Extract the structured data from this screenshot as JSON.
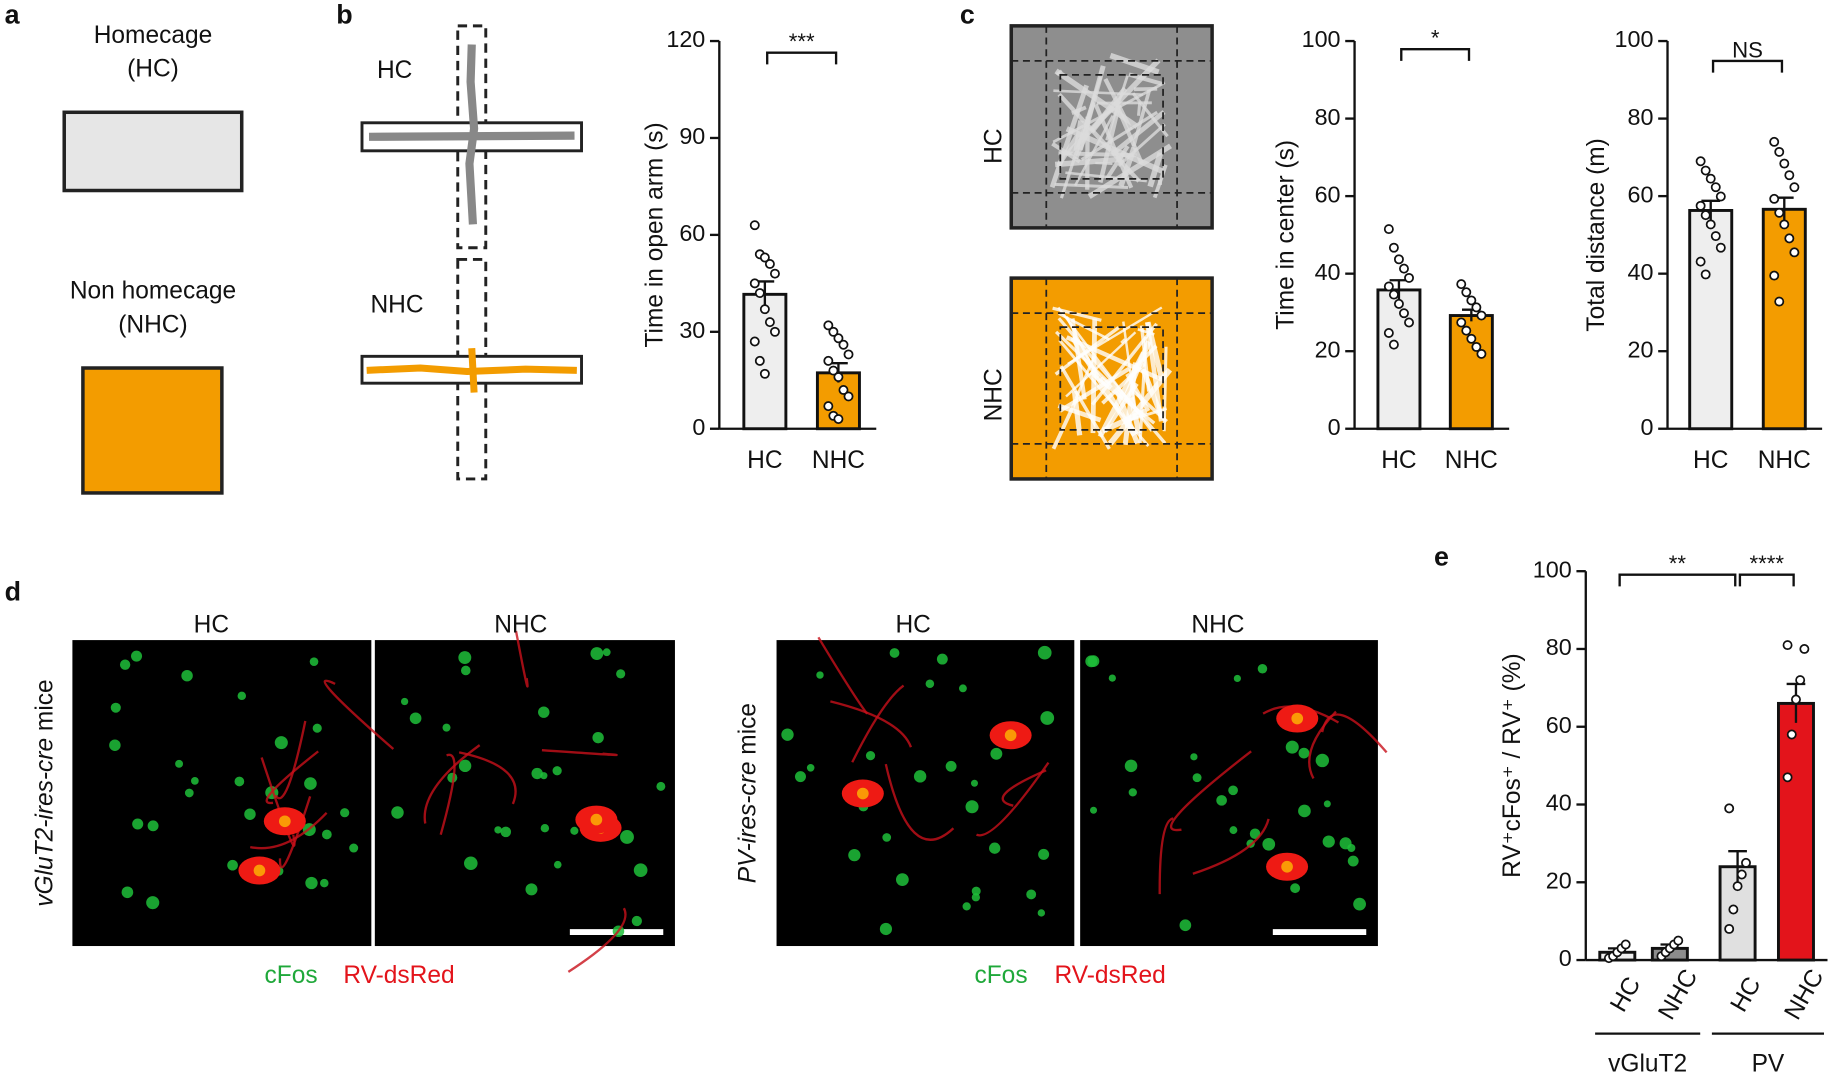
{
  "panel_labels": [
    "a",
    "b",
    "c",
    "d",
    "e"
  ],
  "panel_a": {
    "items": [
      {
        "label": "Homecage",
        "sub": "(HC)"
      },
      {
        "label": "Non homecage",
        "sub": "(NHC)"
      }
    ]
  },
  "panel_b": {
    "labels": [
      "HC",
      "NHC"
    ]
  },
  "panel_c": {
    "labels": [
      "HC",
      "NHC"
    ]
  },
  "panel_d": {
    "images": [
      {
        "genotype": "vGluT2-ires-cre",
        "suffix": " mice",
        "conditions": [
          "HC",
          "NHC"
        ]
      },
      {
        "genotype": "PV-ires-cre",
        "suffix": " mice",
        "conditions": [
          "HC",
          "NHC"
        ]
      }
    ],
    "stains": [
      {
        "name": "cFos",
        "color": "#1fa83a"
      },
      {
        "name": "RV-dsRed",
        "color": "#e3141b"
      }
    ]
  },
  "chart_data": [
    {
      "type": "bar",
      "y_label": "Time in open arm (s)",
      "categories": [
        "HC",
        "NHC"
      ],
      "values": [
        41.6,
        17.3
      ],
      "errors": [
        4,
        3
      ],
      "colors": [
        "#eeeeee",
        "#f39c00"
      ],
      "points": [
        [
          63,
          54,
          53,
          51,
          48,
          45,
          42,
          37,
          33,
          30,
          27,
          21,
          17
        ],
        [
          32,
          30,
          28,
          26,
          23,
          21,
          18,
          16,
          12,
          10,
          7,
          4,
          3
        ]
      ],
      "significance": [
        "***"
      ],
      "ylim": [
        0,
        120
      ],
      "yticks": [
        0,
        30,
        60,
        90,
        120
      ]
    },
    {
      "type": "bar",
      "y_label": "Time in center (s)",
      "categories": [
        "HC",
        "NHC"
      ],
      "values": [
        35.8,
        29.2
      ],
      "errors": [
        2.5,
        1.5
      ],
      "colors": [
        "#eeeeee",
        "#f39c00"
      ],
      "points": [
        [
          51.5,
          46.7,
          43.7,
          41.3,
          38.9,
          36.7,
          34.6,
          32.2,
          29.8,
          27.4,
          24.7,
          21.7
        ],
        [
          37.3,
          35.2,
          33.1,
          31.3,
          29.2,
          27.4,
          25.3,
          23.2,
          21.1,
          19.3
        ]
      ],
      "significance": [
        "*"
      ],
      "ylim": [
        0,
        100
      ],
      "yticks": [
        0,
        20,
        40,
        60,
        80,
        100
      ]
    },
    {
      "type": "bar",
      "y_label": "Total distance (m)",
      "categories": [
        "HC",
        "NHC"
      ],
      "values": [
        56.3,
        56.6
      ],
      "errors": [
        2.5,
        3
      ],
      "colors": [
        "#eeeeee",
        "#f39c00"
      ],
      "points": [
        [
          69,
          66.6,
          64.5,
          62.3,
          59.9,
          57.5,
          55.1,
          52.7,
          49.7,
          46.7,
          43.1,
          39.8
        ],
        [
          74,
          71.4,
          68.4,
          65.4,
          62.3,
          59.3,
          55.7,
          52.7,
          49.1,
          45.5,
          39.5,
          32.8
        ]
      ],
      "significance": [
        "NS"
      ],
      "ylim": [
        0,
        100
      ],
      "yticks": [
        0,
        20,
        40,
        60,
        80,
        100
      ]
    },
    {
      "type": "bar",
      "y_label": "RV⁺cFos⁺ / RV⁺ (%)",
      "categories": [
        "HC",
        "NHC",
        "HC",
        "NHC"
      ],
      "groups": [
        "vGluT2",
        "PV"
      ],
      "values": [
        2,
        3,
        24,
        66
      ],
      "errors": [
        1,
        1,
        4,
        5
      ],
      "colors": [
        "#eeeeee",
        "#8c8c8c",
        "#e0e0e0",
        "#e3141b"
      ],
      "points": [
        [
          0.5,
          1,
          2,
          3,
          4
        ],
        [
          1,
          2,
          3,
          4,
          5
        ],
        [
          8,
          13,
          19,
          22,
          25,
          39
        ],
        [
          47,
          58,
          67,
          72,
          80,
          81
        ]
      ],
      "significance": [
        "**",
        "****"
      ],
      "ylim": [
        0,
        100
      ],
      "yticks": [
        0,
        20,
        40,
        60,
        80,
        100
      ]
    }
  ]
}
